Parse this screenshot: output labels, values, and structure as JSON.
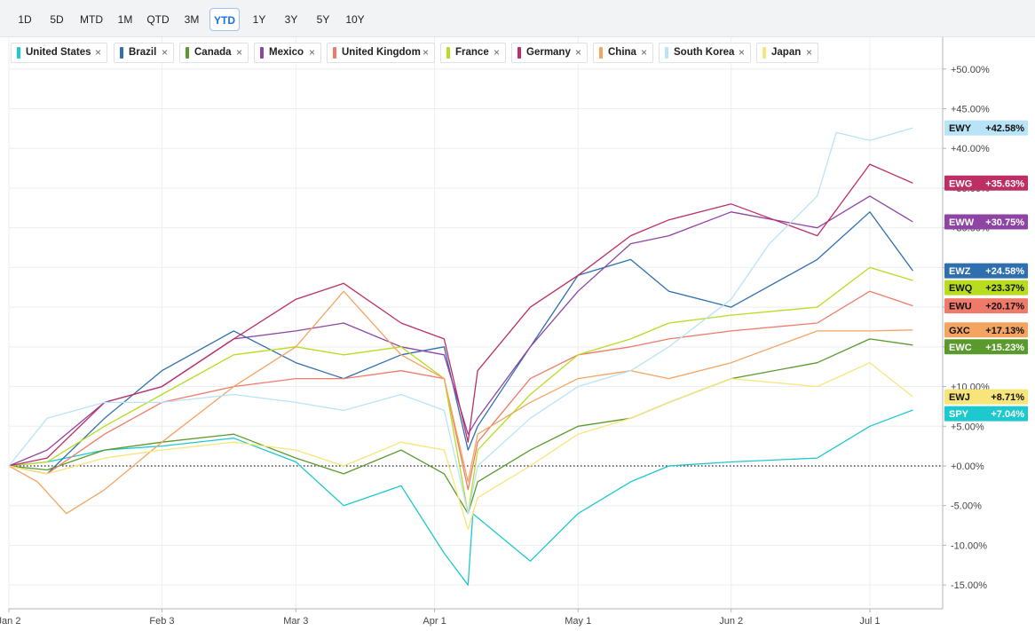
{
  "toolbar": {
    "ranges": [
      "1D",
      "5D",
      "MTD",
      "1M",
      "QTD",
      "3M",
      "YTD",
      "1Y",
      "3Y",
      "5Y",
      "10Y"
    ],
    "active": "YTD"
  },
  "legend": [
    {
      "label": "United States",
      "color": "#1ec8cf"
    },
    {
      "label": "Brazil",
      "color": "#2f6fae"
    },
    {
      "label": "Canada",
      "color": "#5a9a2d"
    },
    {
      "label": "Mexico",
      "color": "#8e44a3"
    },
    {
      "label": "United Kingdom",
      "color": "#f07a6a"
    },
    {
      "label": "France",
      "color": "#b8dc1e"
    },
    {
      "label": "Germany",
      "color": "#bd2e65"
    },
    {
      "label": "China",
      "color": "#f4a460"
    },
    {
      "label": "South Korea",
      "color": "#b9e3f7"
    },
    {
      "label": "Japan",
      "color": "#f7e57a"
    }
  ],
  "chart_data": {
    "type": "line",
    "ylim": [
      -18,
      54
    ],
    "y_ticks": [
      50,
      45,
      40,
      35,
      30,
      25,
      20,
      15,
      10,
      5,
      0,
      -5,
      -10,
      -15
    ],
    "y_tick_labels": [
      "+50.00%",
      "+45.00%",
      "+40.00%",
      "+35.00%",
      "+30.00%",
      "+25.00%",
      "+20.00%",
      "+15.00%",
      "+10.00%",
      "+5.00%",
      "+0.00%",
      "-5.00%",
      "-10.00%",
      "-15.00%"
    ],
    "x_domain": [
      "2025-01-02",
      "2025-07-14"
    ],
    "x_ticks": [
      {
        "label": "Jan 2",
        "date": "2025-01-02"
      },
      {
        "label": "Feb 3",
        "date": "2025-02-03"
      },
      {
        "label": "Mar 3",
        "date": "2025-03-03"
      },
      {
        "label": "Apr 1",
        "date": "2025-04-01"
      },
      {
        "label": "May 1",
        "date": "2025-05-01"
      },
      {
        "label": "Jun 2",
        "date": "2025-06-02"
      },
      {
        "label": "Jul 1",
        "date": "2025-07-01"
      }
    ],
    "series": [
      {
        "name": "United States",
        "ticker": "SPY",
        "final_label": "+7.04%",
        "color": "#1ec8cf",
        "points": [
          [
            "2025-01-02",
            0
          ],
          [
            "2025-01-10",
            0.5
          ],
          [
            "2025-01-22",
            2
          ],
          [
            "2025-02-03",
            2.5
          ],
          [
            "2025-02-18",
            3.5
          ],
          [
            "2025-03-03",
            0.5
          ],
          [
            "2025-03-13",
            -5
          ],
          [
            "2025-03-25",
            -2.5
          ],
          [
            "2025-04-03",
            -11
          ],
          [
            "2025-04-08",
            -15
          ],
          [
            "2025-04-09",
            -6
          ],
          [
            "2025-04-21",
            -12
          ],
          [
            "2025-05-01",
            -6
          ],
          [
            "2025-05-12",
            -2
          ],
          [
            "2025-05-20",
            0
          ],
          [
            "2025-06-02",
            0.5
          ],
          [
            "2025-06-20",
            1
          ],
          [
            "2025-07-01",
            5
          ],
          [
            "2025-07-10",
            7.04
          ]
        ]
      },
      {
        "name": "Brazil",
        "ticker": "EWZ",
        "final_label": "+24.58%",
        "color": "#2f6fae",
        "points": [
          [
            "2025-01-02",
            0
          ],
          [
            "2025-01-10",
            -1
          ],
          [
            "2025-01-22",
            6
          ],
          [
            "2025-02-03",
            12
          ],
          [
            "2025-02-18",
            17
          ],
          [
            "2025-03-03",
            13
          ],
          [
            "2025-03-13",
            11
          ],
          [
            "2025-03-25",
            14
          ],
          [
            "2025-04-03",
            15
          ],
          [
            "2025-04-08",
            2
          ],
          [
            "2025-04-10",
            5
          ],
          [
            "2025-04-21",
            15
          ],
          [
            "2025-05-01",
            24
          ],
          [
            "2025-05-12",
            26
          ],
          [
            "2025-05-20",
            22
          ],
          [
            "2025-06-02",
            20
          ],
          [
            "2025-06-20",
            26
          ],
          [
            "2025-07-01",
            32
          ],
          [
            "2025-07-10",
            24.58
          ]
        ]
      },
      {
        "name": "Canada",
        "ticker": "EWC",
        "final_label": "+15.23%",
        "color": "#5a9a2d",
        "points": [
          [
            "2025-01-02",
            0
          ],
          [
            "2025-01-10",
            -0.5
          ],
          [
            "2025-01-22",
            2
          ],
          [
            "2025-02-03",
            3
          ],
          [
            "2025-02-18",
            4
          ],
          [
            "2025-03-03",
            1
          ],
          [
            "2025-03-13",
            -1
          ],
          [
            "2025-03-25",
            2
          ],
          [
            "2025-04-03",
            -1
          ],
          [
            "2025-04-08",
            -6
          ],
          [
            "2025-04-10",
            -2
          ],
          [
            "2025-04-21",
            2
          ],
          [
            "2025-05-01",
            5
          ],
          [
            "2025-05-12",
            6
          ],
          [
            "2025-05-20",
            8
          ],
          [
            "2025-06-02",
            11
          ],
          [
            "2025-06-20",
            13
          ],
          [
            "2025-07-01",
            16
          ],
          [
            "2025-07-10",
            15.23
          ]
        ]
      },
      {
        "name": "Mexico",
        "ticker": "EWW",
        "final_label": "+30.75%",
        "color": "#8e44a3",
        "points": [
          [
            "2025-01-02",
            0
          ],
          [
            "2025-01-10",
            2
          ],
          [
            "2025-01-22",
            8
          ],
          [
            "2025-02-03",
            10
          ],
          [
            "2025-02-18",
            16
          ],
          [
            "2025-03-03",
            17
          ],
          [
            "2025-03-13",
            18
          ],
          [
            "2025-03-25",
            15
          ],
          [
            "2025-04-03",
            14
          ],
          [
            "2025-04-08",
            4
          ],
          [
            "2025-04-10",
            6
          ],
          [
            "2025-04-21",
            15
          ],
          [
            "2025-05-01",
            22
          ],
          [
            "2025-05-12",
            28
          ],
          [
            "2025-05-20",
            29
          ],
          [
            "2025-06-02",
            32
          ],
          [
            "2025-06-20",
            30
          ],
          [
            "2025-07-01",
            34
          ],
          [
            "2025-07-10",
            30.75
          ]
        ]
      },
      {
        "name": "United Kingdom",
        "ticker": "EWU",
        "final_label": "+20.17%",
        "color": "#f07a6a",
        "points": [
          [
            "2025-01-02",
            0
          ],
          [
            "2025-01-10",
            -1
          ],
          [
            "2025-01-22",
            4
          ],
          [
            "2025-02-03",
            8
          ],
          [
            "2025-02-18",
            10
          ],
          [
            "2025-03-03",
            11
          ],
          [
            "2025-03-13",
            11
          ],
          [
            "2025-03-25",
            12
          ],
          [
            "2025-04-03",
            11
          ],
          [
            "2025-04-08",
            -3
          ],
          [
            "2025-04-10",
            3
          ],
          [
            "2025-04-21",
            11
          ],
          [
            "2025-05-01",
            14
          ],
          [
            "2025-05-12",
            15
          ],
          [
            "2025-05-20",
            16
          ],
          [
            "2025-06-02",
            17
          ],
          [
            "2025-06-20",
            18
          ],
          [
            "2025-07-01",
            22
          ],
          [
            "2025-07-10",
            20.17
          ]
        ]
      },
      {
        "name": "France",
        "ticker": "EWQ",
        "final_label": "+23.37%",
        "color": "#b8dc1e",
        "points": [
          [
            "2025-01-02",
            0
          ],
          [
            "2025-01-10",
            0.5
          ],
          [
            "2025-01-22",
            5
          ],
          [
            "2025-02-03",
            9
          ],
          [
            "2025-02-18",
            14
          ],
          [
            "2025-03-03",
            15
          ],
          [
            "2025-03-13",
            14
          ],
          [
            "2025-03-25",
            15
          ],
          [
            "2025-04-03",
            11
          ],
          [
            "2025-04-08",
            -6
          ],
          [
            "2025-04-10",
            2
          ],
          [
            "2025-04-21",
            9
          ],
          [
            "2025-05-01",
            14
          ],
          [
            "2025-05-12",
            16
          ],
          [
            "2025-05-20",
            18
          ],
          [
            "2025-06-02",
            19
          ],
          [
            "2025-06-20",
            20
          ],
          [
            "2025-07-01",
            25
          ],
          [
            "2025-07-10",
            23.37
          ]
        ]
      },
      {
        "name": "Germany",
        "ticker": "EWG",
        "final_label": "+35.63%",
        "color": "#bd2e65",
        "points": [
          [
            "2025-01-02",
            0
          ],
          [
            "2025-01-10",
            1
          ],
          [
            "2025-01-22",
            8
          ],
          [
            "2025-02-03",
            10
          ],
          [
            "2025-02-18",
            16
          ],
          [
            "2025-03-03",
            21
          ],
          [
            "2025-03-13",
            23
          ],
          [
            "2025-03-25",
            18
          ],
          [
            "2025-04-03",
            16
          ],
          [
            "2025-04-08",
            3
          ],
          [
            "2025-04-10",
            12
          ],
          [
            "2025-04-21",
            20
          ],
          [
            "2025-05-01",
            24
          ],
          [
            "2025-05-12",
            29
          ],
          [
            "2025-05-20",
            31
          ],
          [
            "2025-06-02",
            33
          ],
          [
            "2025-06-20",
            29
          ],
          [
            "2025-07-01",
            38
          ],
          [
            "2025-07-10",
            35.63
          ]
        ]
      },
      {
        "name": "China",
        "ticker": "GXC",
        "final_label": "+17.13%",
        "color": "#f4a460",
        "points": [
          [
            "2025-01-02",
            0
          ],
          [
            "2025-01-08",
            -2
          ],
          [
            "2025-01-14",
            -6
          ],
          [
            "2025-01-22",
            -3
          ],
          [
            "2025-02-03",
            3
          ],
          [
            "2025-02-18",
            10
          ],
          [
            "2025-03-03",
            15
          ],
          [
            "2025-03-13",
            22
          ],
          [
            "2025-03-25",
            14
          ],
          [
            "2025-04-03",
            11
          ],
          [
            "2025-04-08",
            -2
          ],
          [
            "2025-04-10",
            4
          ],
          [
            "2025-04-21",
            8
          ],
          [
            "2025-05-01",
            11
          ],
          [
            "2025-05-12",
            12
          ],
          [
            "2025-05-20",
            11
          ],
          [
            "2025-06-02",
            13
          ],
          [
            "2025-06-20",
            17
          ],
          [
            "2025-07-01",
            17
          ],
          [
            "2025-07-10",
            17.13
          ]
        ]
      },
      {
        "name": "South Korea",
        "ticker": "EWY",
        "final_label": "+42.58%",
        "color": "#b9e3f7",
        "points": [
          [
            "2025-01-02",
            0
          ],
          [
            "2025-01-10",
            6
          ],
          [
            "2025-01-22",
            8
          ],
          [
            "2025-02-03",
            8
          ],
          [
            "2025-02-18",
            9
          ],
          [
            "2025-03-03",
            8
          ],
          [
            "2025-03-13",
            7
          ],
          [
            "2025-03-25",
            9
          ],
          [
            "2025-04-03",
            7
          ],
          [
            "2025-04-08",
            -6
          ],
          [
            "2025-04-10",
            0
          ],
          [
            "2025-04-21",
            6
          ],
          [
            "2025-05-01",
            10
          ],
          [
            "2025-05-12",
            12
          ],
          [
            "2025-05-20",
            15
          ],
          [
            "2025-06-02",
            21
          ],
          [
            "2025-06-10",
            28
          ],
          [
            "2025-06-20",
            34
          ],
          [
            "2025-06-24",
            42
          ],
          [
            "2025-07-01",
            41
          ],
          [
            "2025-07-10",
            42.58
          ]
        ]
      },
      {
        "name": "Japan",
        "ticker": "EWJ",
        "final_label": "+8.71%",
        "color": "#f7e57a",
        "points": [
          [
            "2025-01-02",
            0
          ],
          [
            "2025-01-10",
            -1
          ],
          [
            "2025-01-22",
            1
          ],
          [
            "2025-02-03",
            2
          ],
          [
            "2025-02-18",
            3
          ],
          [
            "2025-03-03",
            2
          ],
          [
            "2025-03-13",
            0
          ],
          [
            "2025-03-25",
            3
          ],
          [
            "2025-04-03",
            2
          ],
          [
            "2025-04-08",
            -8
          ],
          [
            "2025-04-10",
            -4
          ],
          [
            "2025-04-21",
            0
          ],
          [
            "2025-05-01",
            4
          ],
          [
            "2025-05-12",
            6
          ],
          [
            "2025-05-20",
            8
          ],
          [
            "2025-06-02",
            11
          ],
          [
            "2025-06-20",
            10
          ],
          [
            "2025-07-01",
            13
          ],
          [
            "2025-07-10",
            8.71
          ]
        ]
      }
    ]
  }
}
